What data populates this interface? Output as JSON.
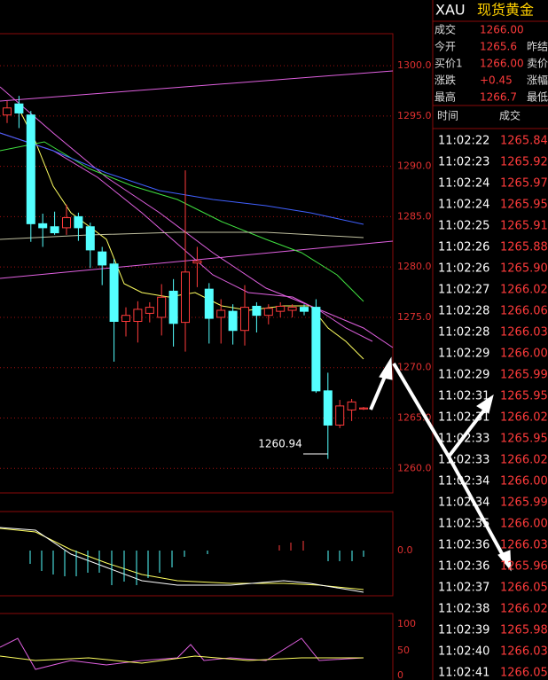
{
  "header": {
    "symbol": "XAU",
    "name": "现货黄金"
  },
  "quote": [
    {
      "label": "成交",
      "value": "1266.00",
      "side": ""
    },
    {
      "label": "今开",
      "value": "1265.6",
      "side": "昨结"
    },
    {
      "label": "买价1",
      "value": "1266.00",
      "side": "卖价"
    },
    {
      "label": "涨跌",
      "value": "+0.45",
      "side": "涨幅"
    },
    {
      "label": "最高",
      "value": "1266.7",
      "side": "最低"
    }
  ],
  "trades": {
    "headers": [
      "时间",
      "成交"
    ],
    "rows": [
      [
        "11:02:22",
        "1265.84"
      ],
      [
        "11:02:23",
        "1265.92"
      ],
      [
        "11:02:24",
        "1265.97"
      ],
      [
        "11:02:24",
        "1265.95"
      ],
      [
        "11:02:25",
        "1265.91"
      ],
      [
        "11:02:26",
        "1265.88"
      ],
      [
        "11:02:26",
        "1265.90"
      ],
      [
        "11:02:27",
        "1266.02"
      ],
      [
        "11:02:28",
        "1266.06"
      ],
      [
        "11:02:28",
        "1266.03"
      ],
      [
        "11:02:29",
        "1266.00"
      ],
      [
        "11:02:29",
        "1265.99"
      ],
      [
        "11:02:31",
        "1265.95"
      ],
      [
        "11:02:31",
        "1266.02"
      ],
      [
        "11:02:33",
        "1265.95"
      ],
      [
        "11:02:33",
        "1266.02"
      ],
      [
        "11:02:34",
        "1266.00"
      ],
      [
        "11:02:34",
        "1265.99"
      ],
      [
        "11:02:35",
        "1266.00"
      ],
      [
        "11:02:36",
        "1266.03"
      ],
      [
        "11:02:36",
        "1265.96"
      ],
      [
        "11:02:37",
        "1266.05"
      ],
      [
        "11:02:38",
        "1266.02"
      ],
      [
        "11:02:39",
        "1265.98"
      ],
      [
        "11:02:40",
        "1266.03"
      ],
      [
        "11:02:41",
        "1266.05"
      ]
    ]
  },
  "chart": {
    "ylim": [
      1258,
      1303
    ],
    "yticks": [
      {
        "value": 1300,
        "label": "1300.0"
      },
      {
        "value": 1295,
        "label": "1295.0"
      },
      {
        "value": 1290,
        "label": "1290.0"
      },
      {
        "value": 1285,
        "label": "1285.0"
      },
      {
        "value": 1280,
        "label": "1280.0"
      },
      {
        "value": 1275,
        "label": "1275.0"
      },
      {
        "value": 1270,
        "label": "1270.0"
      },
      {
        "value": 1265,
        "label": "1265.0"
      },
      {
        "value": 1260,
        "label": "1260.0"
      }
    ],
    "low_annotation": {
      "value": 1260.94,
      "label": "1260.94"
    },
    "up_color": "#ff3b3b",
    "down_color": "#54ffff",
    "candles": [
      {
        "open": 1295.1,
        "high": 1296.5,
        "low": 1294.3,
        "close": 1295.8
      },
      {
        "open": 1296.2,
        "high": 1297.0,
        "low": 1293.8,
        "close": 1295.3
      },
      {
        "open": 1295.1,
        "high": 1295.5,
        "low": 1282.5,
        "close": 1284.3
      },
      {
        "open": 1284.3,
        "high": 1285.3,
        "low": 1282.0,
        "close": 1283.9
      },
      {
        "open": 1284.0,
        "high": 1285.5,
        "low": 1283.2,
        "close": 1283.4
      },
      {
        "open": 1283.9,
        "high": 1286.2,
        "low": 1283.2,
        "close": 1284.9
      },
      {
        "open": 1285.0,
        "high": 1285.4,
        "low": 1282.6,
        "close": 1283.9
      },
      {
        "open": 1284.0,
        "high": 1284.4,
        "low": 1279.9,
        "close": 1281.7
      },
      {
        "open": 1281.5,
        "high": 1282.0,
        "low": 1278.2,
        "close": 1280.2
      },
      {
        "open": 1280.3,
        "high": 1280.8,
        "low": 1270.6,
        "close": 1274.6
      },
      {
        "open": 1274.6,
        "high": 1276.0,
        "low": 1273.1,
        "close": 1275.2
      },
      {
        "open": 1274.6,
        "high": 1276.6,
        "low": 1272.5,
        "close": 1275.8
      },
      {
        "open": 1275.4,
        "high": 1276.5,
        "low": 1274.5,
        "close": 1276.0
      },
      {
        "open": 1275.0,
        "high": 1278.3,
        "low": 1273.2,
        "close": 1277.0
      },
      {
        "open": 1277.6,
        "high": 1278.8,
        "low": 1272.1,
        "close": 1274.4
      },
      {
        "open": 1274.5,
        "high": 1289.6,
        "low": 1271.6,
        "close": 1279.5
      },
      {
        "open": 1280.4,
        "high": 1282.0,
        "low": 1278.0,
        "close": 1280.6
      },
      {
        "open": 1277.8,
        "high": 1278.4,
        "low": 1272.4,
        "close": 1274.9
      },
      {
        "open": 1275.0,
        "high": 1276.8,
        "low": 1272.4,
        "close": 1275.7
      },
      {
        "open": 1275.6,
        "high": 1276.3,
        "low": 1272.3,
        "close": 1273.7
      },
      {
        "open": 1273.7,
        "high": 1278.2,
        "low": 1272.2,
        "close": 1276.0
      },
      {
        "open": 1276.1,
        "high": 1276.5,
        "low": 1273.5,
        "close": 1275.2
      },
      {
        "open": 1275.2,
        "high": 1276.3,
        "low": 1274.3,
        "close": 1275.9
      },
      {
        "open": 1275.6,
        "high": 1276.5,
        "low": 1275.0,
        "close": 1276.1
      },
      {
        "open": 1275.7,
        "high": 1276.3,
        "low": 1275.0,
        "close": 1276.0
      },
      {
        "open": 1276.0,
        "high": 1276.3,
        "low": 1275.2,
        "close": 1275.6
      },
      {
        "open": 1276.0,
        "high": 1276.8,
        "low": 1267.5,
        "close": 1267.7
      },
      {
        "open": 1267.7,
        "high": 1269.5,
        "low": 1260.94,
        "close": 1264.3
      },
      {
        "open": 1264.3,
        "high": 1266.8,
        "low": 1264.0,
        "close": 1266.2
      },
      {
        "open": 1265.8,
        "high": 1266.9,
        "low": 1264.7,
        "close": 1266.6
      },
      {
        "open": 1265.9,
        "high": 1266.1,
        "low": 1265.8,
        "close": 1266.0
      }
    ]
  },
  "macd_axis": {
    "label": "0.0"
  },
  "kdj_axis": [
    "100",
    "50",
    "0"
  ]
}
